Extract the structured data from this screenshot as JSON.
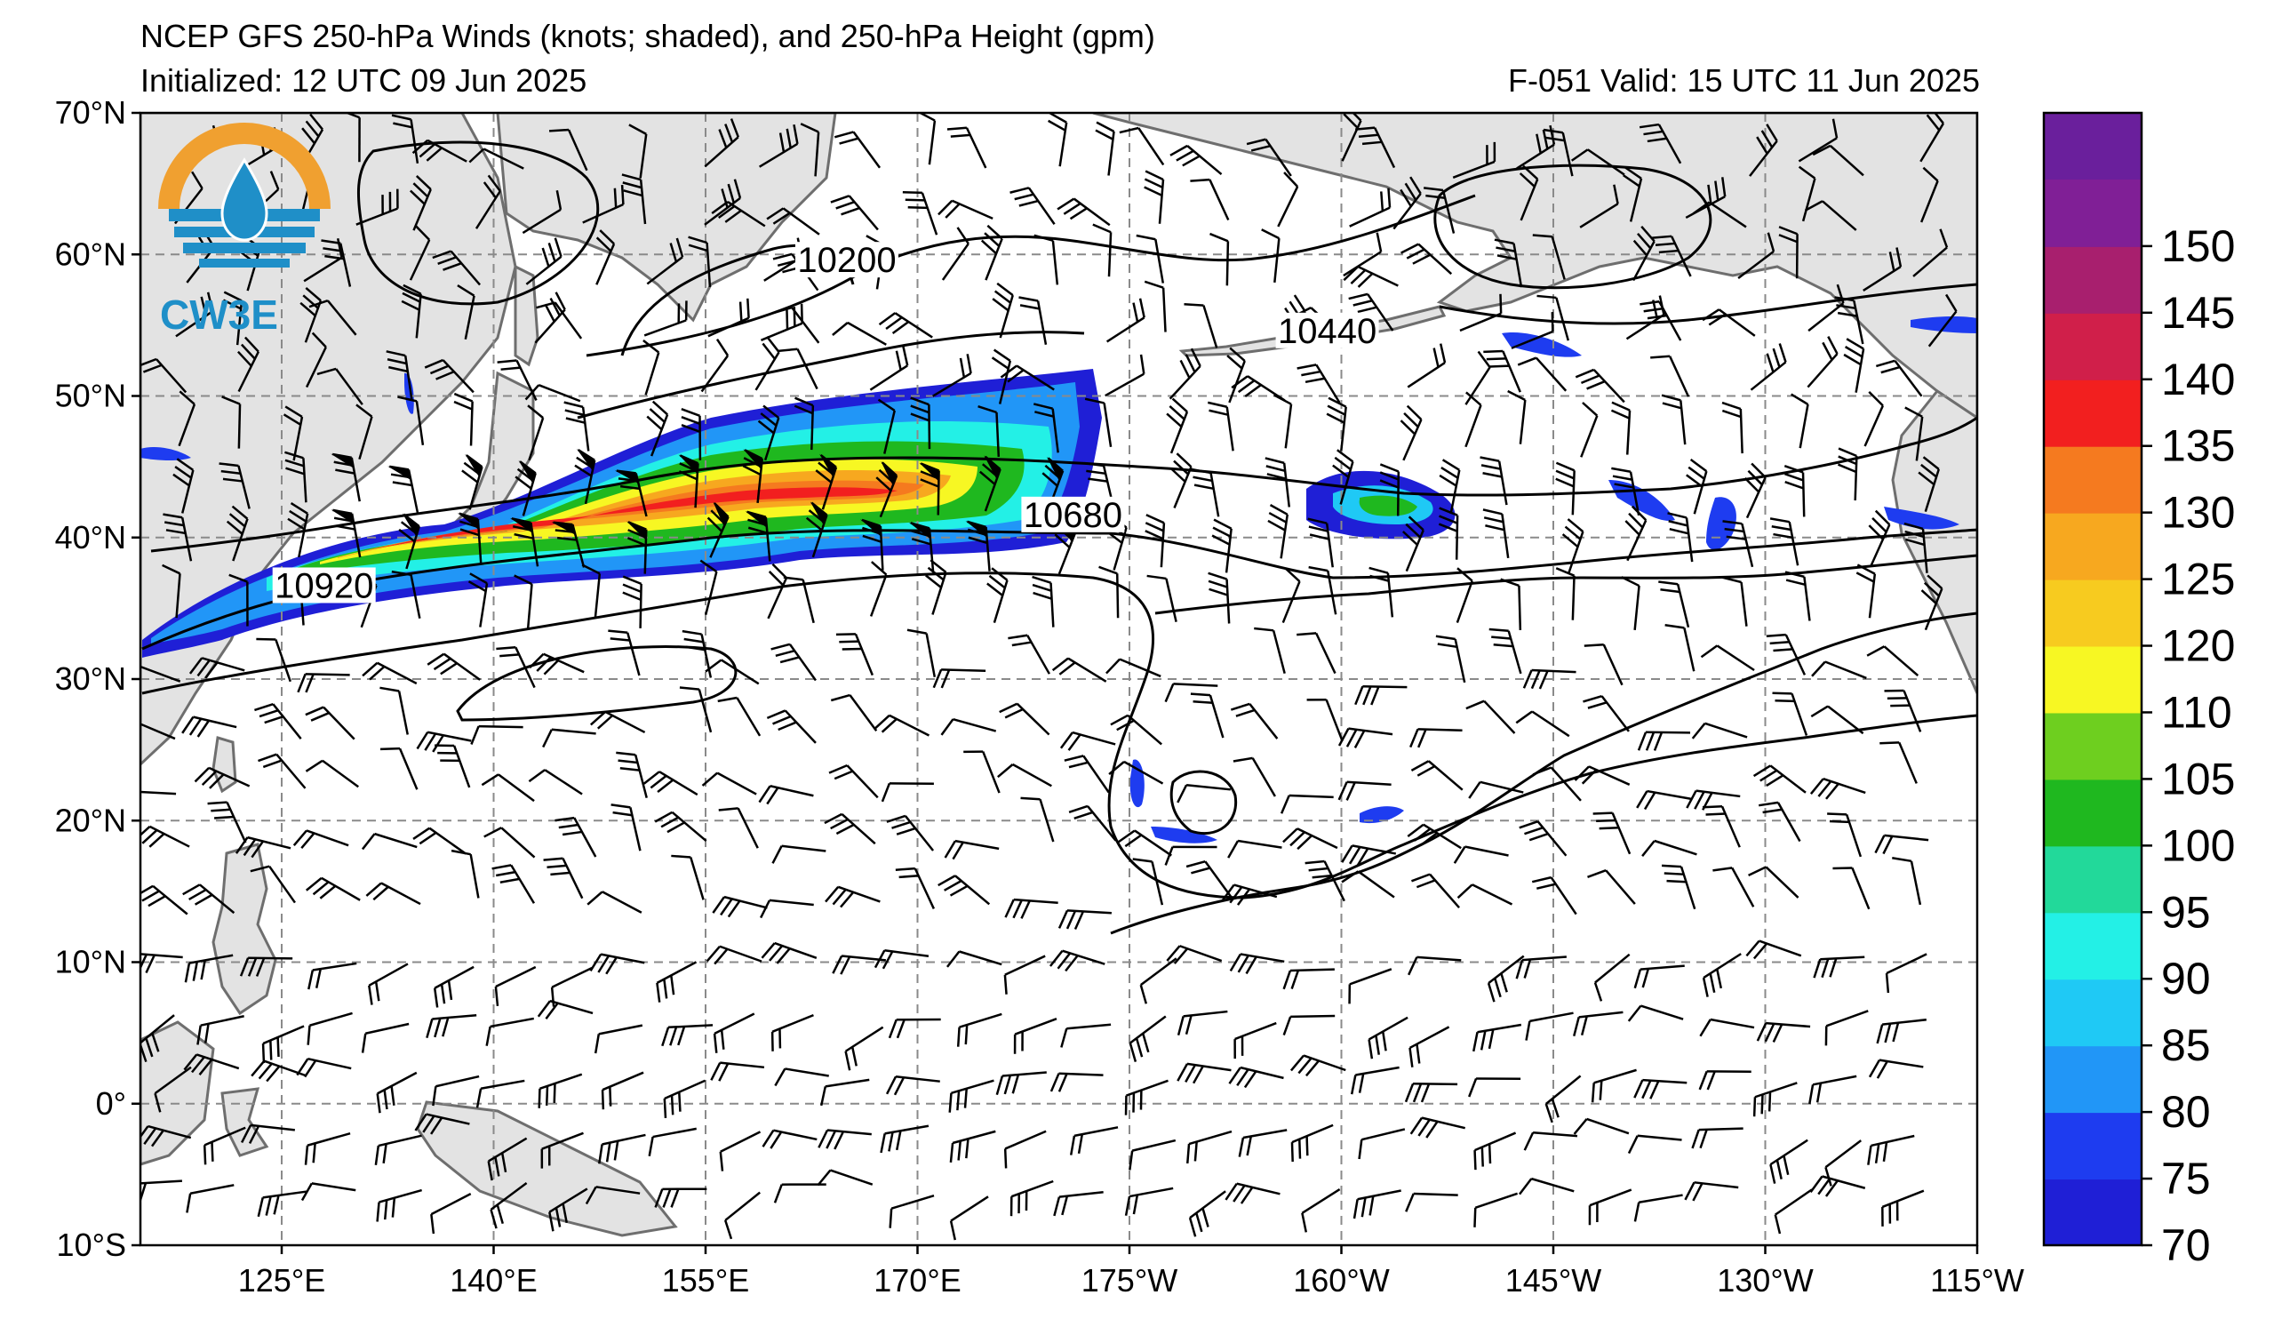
{
  "titles": {
    "line1": "NCEP GFS 250-hPa Winds (knots; shaded), and 250-hPa Height (gpm)",
    "line2": "Initialized: 12 UTC 09 Jun 2025",
    "line3": "F-051  Valid: 15 UTC 11 Jun 2025"
  },
  "logo": {
    "text": "CW3E"
  },
  "map": {
    "lat_range": [
      -10,
      70
    ],
    "lon_range_east": [
      115,
      245
    ],
    "lat_ticks": [
      {
        "value": 70,
        "label": "70°N"
      },
      {
        "value": 60,
        "label": "60°N"
      },
      {
        "value": 50,
        "label": "50°N"
      },
      {
        "value": 40,
        "label": "40°N"
      },
      {
        "value": 30,
        "label": "30°N"
      },
      {
        "value": 20,
        "label": "20°N"
      },
      {
        "value": 10,
        "label": "10°N"
      },
      {
        "value": 0,
        "label": "0°"
      },
      {
        "value": -10,
        "label": "10°S"
      }
    ],
    "lon_ticks": [
      {
        "value": 125,
        "label": "125°E"
      },
      {
        "value": 140,
        "label": "140°E"
      },
      {
        "value": 155,
        "label": "155°E"
      },
      {
        "value": 170,
        "label": "170°E"
      },
      {
        "value": 185,
        "label": "175°W"
      },
      {
        "value": 200,
        "label": "160°W"
      },
      {
        "value": 215,
        "label": "145°W"
      },
      {
        "value": 230,
        "label": "130°W"
      },
      {
        "value": 245,
        "label": "115°W"
      }
    ],
    "grid_lat": [
      60,
      50,
      40,
      30,
      20,
      10,
      0
    ],
    "grid_lon": [
      125,
      140,
      155,
      170,
      185,
      200,
      215,
      230
    ],
    "contour_labels": [
      {
        "text": "10200",
        "lon": 165,
        "lat": 59
      },
      {
        "text": "10440",
        "lon": 199,
        "lat": 54
      },
      {
        "text": "10680",
        "lon": 181,
        "lat": 41
      },
      {
        "text": "10920",
        "lon": 128,
        "lat": 36
      }
    ]
  },
  "colorbar": {
    "levels": [
      "70",
      "75",
      "80",
      "85",
      "90",
      "95",
      "100",
      "105",
      "110",
      "120",
      "125",
      "130",
      "135",
      "140",
      "145",
      "150"
    ],
    "colors": [
      "#1f1fd6",
      "#1e3cf0",
      "#2196f7",
      "#1fc9f5",
      "#23f0e6",
      "#22d99a",
      "#1fb81f",
      "#6ecf1f",
      "#f7f723",
      "#f7cb1f",
      "#f7a81f",
      "#f57a1f",
      "#f21f1f",
      "#d01f4a",
      "#a81f6e",
      "#801f96"
    ],
    "top_color": "#6a1f9c"
  },
  "colors": {
    "land": "#e3e3e3",
    "coast": "#6e6e6e",
    "jet_core": "#f21f1f",
    "logo_orange": "#f0a030",
    "logo_blue": "#1f8fc8"
  }
}
